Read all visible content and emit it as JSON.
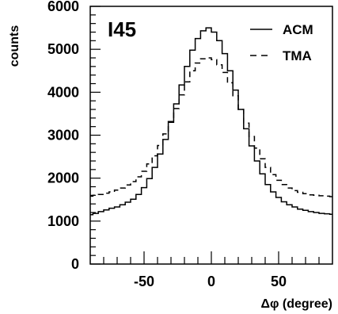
{
  "chart_data": {
    "type": "line",
    "panel_label": "I45",
    "title": "",
    "xlabel": "Δφ (degree)",
    "ylabel": "counts",
    "xlim": [
      -90,
      90
    ],
    "ylim": [
      0,
      6000
    ],
    "xticks": [
      -50,
      0,
      50
    ],
    "yticks": [
      0,
      1000,
      2000,
      3000,
      4000,
      5000,
      6000
    ],
    "legend_position": "top-right",
    "x": [
      -90,
      -86,
      -82,
      -78,
      -74,
      -70,
      -66,
      -62,
      -58,
      -54,
      -50,
      -46,
      -42,
      -38,
      -34,
      -30,
      -26,
      -22,
      -18,
      -14,
      -10,
      -6,
      -2,
      2,
      6,
      10,
      14,
      18,
      22,
      26,
      30,
      34,
      38,
      42,
      46,
      50,
      54,
      58,
      62,
      66,
      70,
      74,
      78,
      82,
      86,
      90
    ],
    "series": [
      {
        "name": "ACM",
        "line_style": "solid",
        "values": [
          1150,
          1180,
          1220,
          1260,
          1300,
          1330,
          1380,
          1440,
          1510,
          1620,
          1780,
          1990,
          2250,
          2560,
          2900,
          3300,
          3730,
          4170,
          4600,
          4980,
          5250,
          5430,
          5500,
          5400,
          5200,
          4900,
          4500,
          4050,
          3600,
          3150,
          2750,
          2400,
          2100,
          1850,
          1680,
          1550,
          1450,
          1380,
          1330,
          1280,
          1250,
          1220,
          1200,
          1180,
          1170,
          1160
        ]
      },
      {
        "name": "TMA",
        "line_style": "dashed",
        "values": [
          1580,
          1600,
          1620,
          1650,
          1680,
          1720,
          1770,
          1840,
          1920,
          2030,
          2160,
          2330,
          2520,
          2760,
          3030,
          3320,
          3620,
          3940,
          4240,
          4500,
          4680,
          4780,
          4800,
          4760,
          4640,
          4460,
          4220,
          3920,
          3600,
          3280,
          2970,
          2700,
          2450,
          2250,
          2080,
          1950,
          1850,
          1770,
          1710,
          1670,
          1640,
          1610,
          1600,
          1590,
          1580,
          1570
        ]
      }
    ]
  }
}
